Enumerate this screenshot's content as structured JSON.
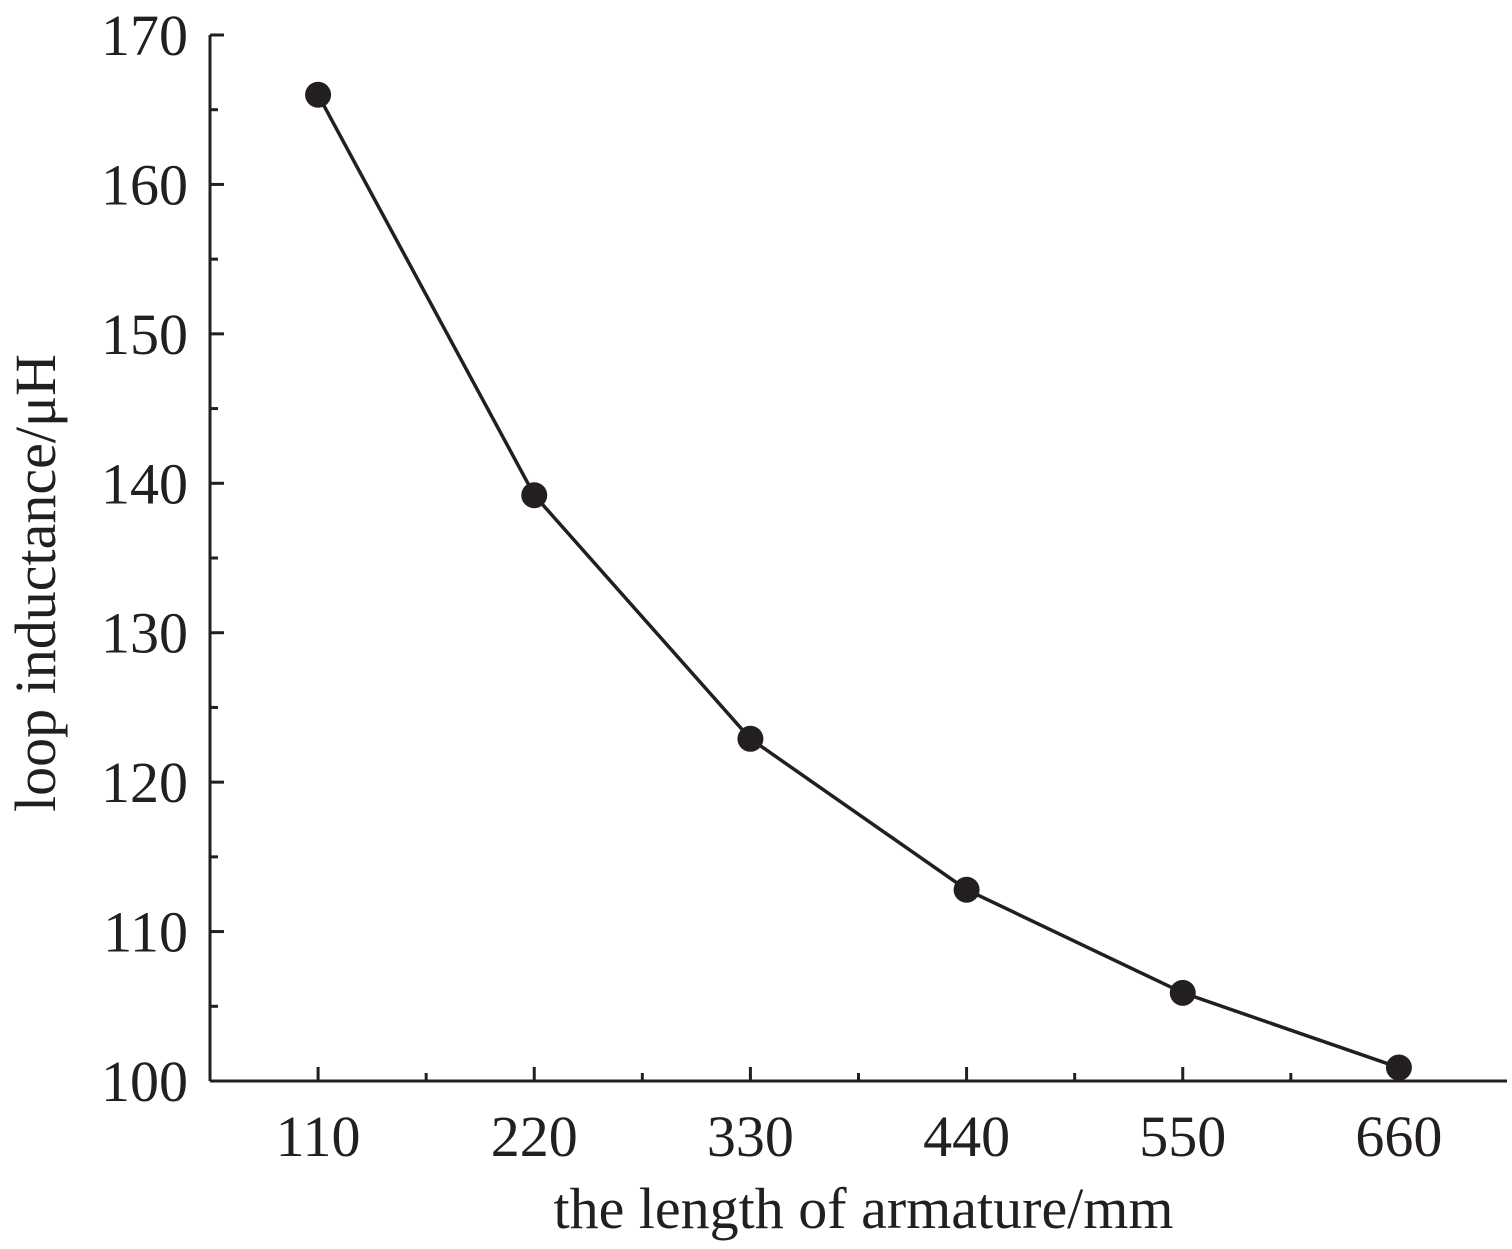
{
  "chart_data": {
    "type": "line",
    "title": "",
    "xlabel": "the length of armature/mm",
    "ylabel": "loop inductance/μH",
    "categories": [
      "110",
      "220",
      "330",
      "440",
      "550",
      "660"
    ],
    "x": [
      110,
      220,
      330,
      440,
      550,
      660
    ],
    "series": [
      {
        "values": [
          166,
          139.2,
          122.9,
          112.8,
          105.9,
          100.9
        ]
      }
    ],
    "xlim": [
      55,
      715
    ],
    "ylim": [
      100,
      170
    ],
    "x_ticks": [
      110,
      220,
      330,
      440,
      550,
      660
    ],
    "x_minor_ticks": [
      165,
      275,
      385,
      495,
      605
    ],
    "y_ticks": [
      100,
      110,
      120,
      130,
      140,
      150,
      160,
      170
    ],
    "y_minor_ticks": [
      105,
      115,
      125,
      135,
      145,
      155,
      165
    ],
    "grid": false,
    "legend": "none",
    "marker": "filled-circle",
    "color": "#231f20"
  }
}
